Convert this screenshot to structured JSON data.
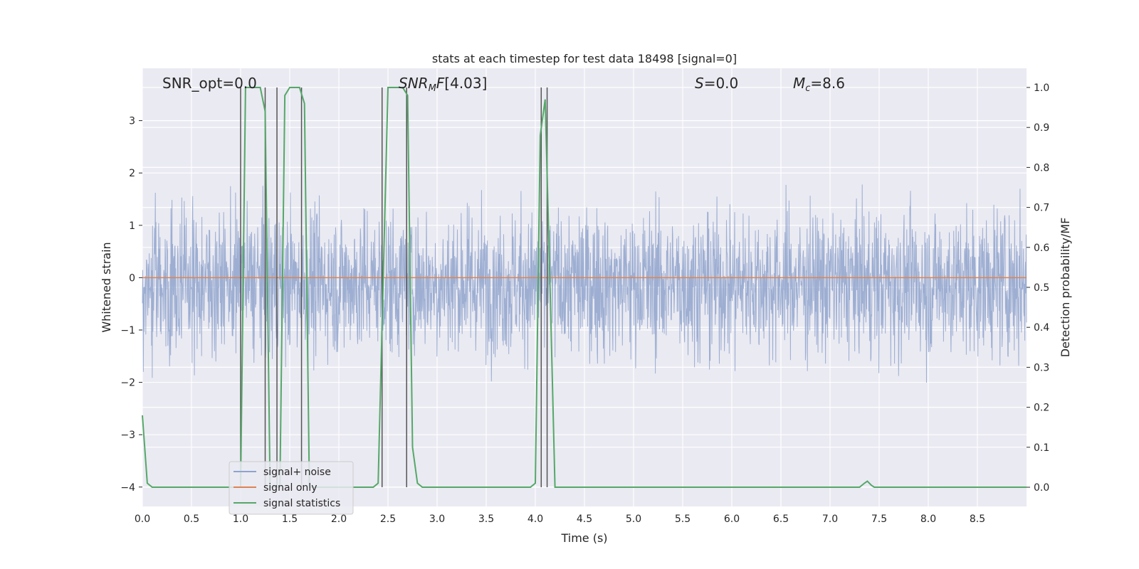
{
  "chart_data": {
    "type": "line",
    "title": "stats at each timestep for test data 18498 [signal=0]",
    "xlabel": "Time (s)",
    "ylabel_left": "Whitened strain",
    "ylabel_right": "Detection probability/MF",
    "xlim": [
      0,
      9
    ],
    "ylim_left": [
      -4.37,
      4.0
    ],
    "ylim_right": [
      -0.048,
      1.048
    ],
    "x_ticks": [
      "0.0",
      "0.5",
      "1.0",
      "1.5",
      "2.0",
      "2.5",
      "3.0",
      "3.5",
      "4.0",
      "4.5",
      "5.0",
      "5.5",
      "6.0",
      "6.5",
      "7.0",
      "7.5",
      "8.0",
      "8.5"
    ],
    "y_left_ticks": [
      "−4",
      "−3",
      "−2",
      "−1",
      "0",
      "1",
      "2",
      "3"
    ],
    "y_right_ticks": [
      "0.0",
      "0.1",
      "0.2",
      "0.3",
      "0.4",
      "0.5",
      "0.6",
      "0.7",
      "0.8",
      "0.9",
      "1.0"
    ],
    "grid": true,
    "legend_position": "lower-left",
    "annotations": {
      "snr_opt": "SNR_opt=0.0",
      "snr_mf": "[4.03]",
      "s_value": "=0.0",
      "mc_value": "=8.6"
    },
    "series": [
      {
        "name": "signal+ noise",
        "color": "#8fa3cc",
        "description_values": {
          "typical_range": [
            -1.7,
            1.5
          ],
          "peak_max": 3.6,
          "peak_min": -4.0
        }
      },
      {
        "name": "signal only",
        "color": "#dd8452",
        "x": [
          0,
          9
        ],
        "y": [
          0,
          0
        ]
      },
      {
        "name": "signal statistics",
        "color": "#55a868",
        "axis": "right",
        "x": [
          0.0,
          0.05,
          0.1,
          0.9,
          1.0,
          1.05,
          1.2,
          1.25,
          1.3,
          1.35,
          1.4,
          1.45,
          1.5,
          1.6,
          1.65,
          1.7,
          1.75,
          2.35,
          2.4,
          2.5,
          2.65,
          2.7,
          2.75,
          2.8,
          2.85,
          3.95,
          4.0,
          4.05,
          4.1,
          4.15,
          4.2,
          4.25,
          4.3,
          7.3,
          7.35,
          7.38,
          7.42,
          7.45,
          7.5,
          9.0
        ],
        "y": [
          0.18,
          0.01,
          0.0,
          0.0,
          0.0,
          1.0,
          1.0,
          0.94,
          0.0,
          0.0,
          0.0,
          0.98,
          1.0,
          1.0,
          0.96,
          0.0,
          0.0,
          0.0,
          0.01,
          1.0,
          1.0,
          0.98,
          0.1,
          0.01,
          0.0,
          0.0,
          0.01,
          0.88,
          0.97,
          0.5,
          0.0,
          0.0,
          0.0,
          0.0,
          0.01,
          0.015,
          0.005,
          0.0,
          0.0,
          0.0
        ]
      }
    ],
    "vertical_lines_x": [
      1.0,
      1.25,
      1.37,
      1.62,
      2.44,
      2.69,
      4.06,
      4.12
    ]
  }
}
